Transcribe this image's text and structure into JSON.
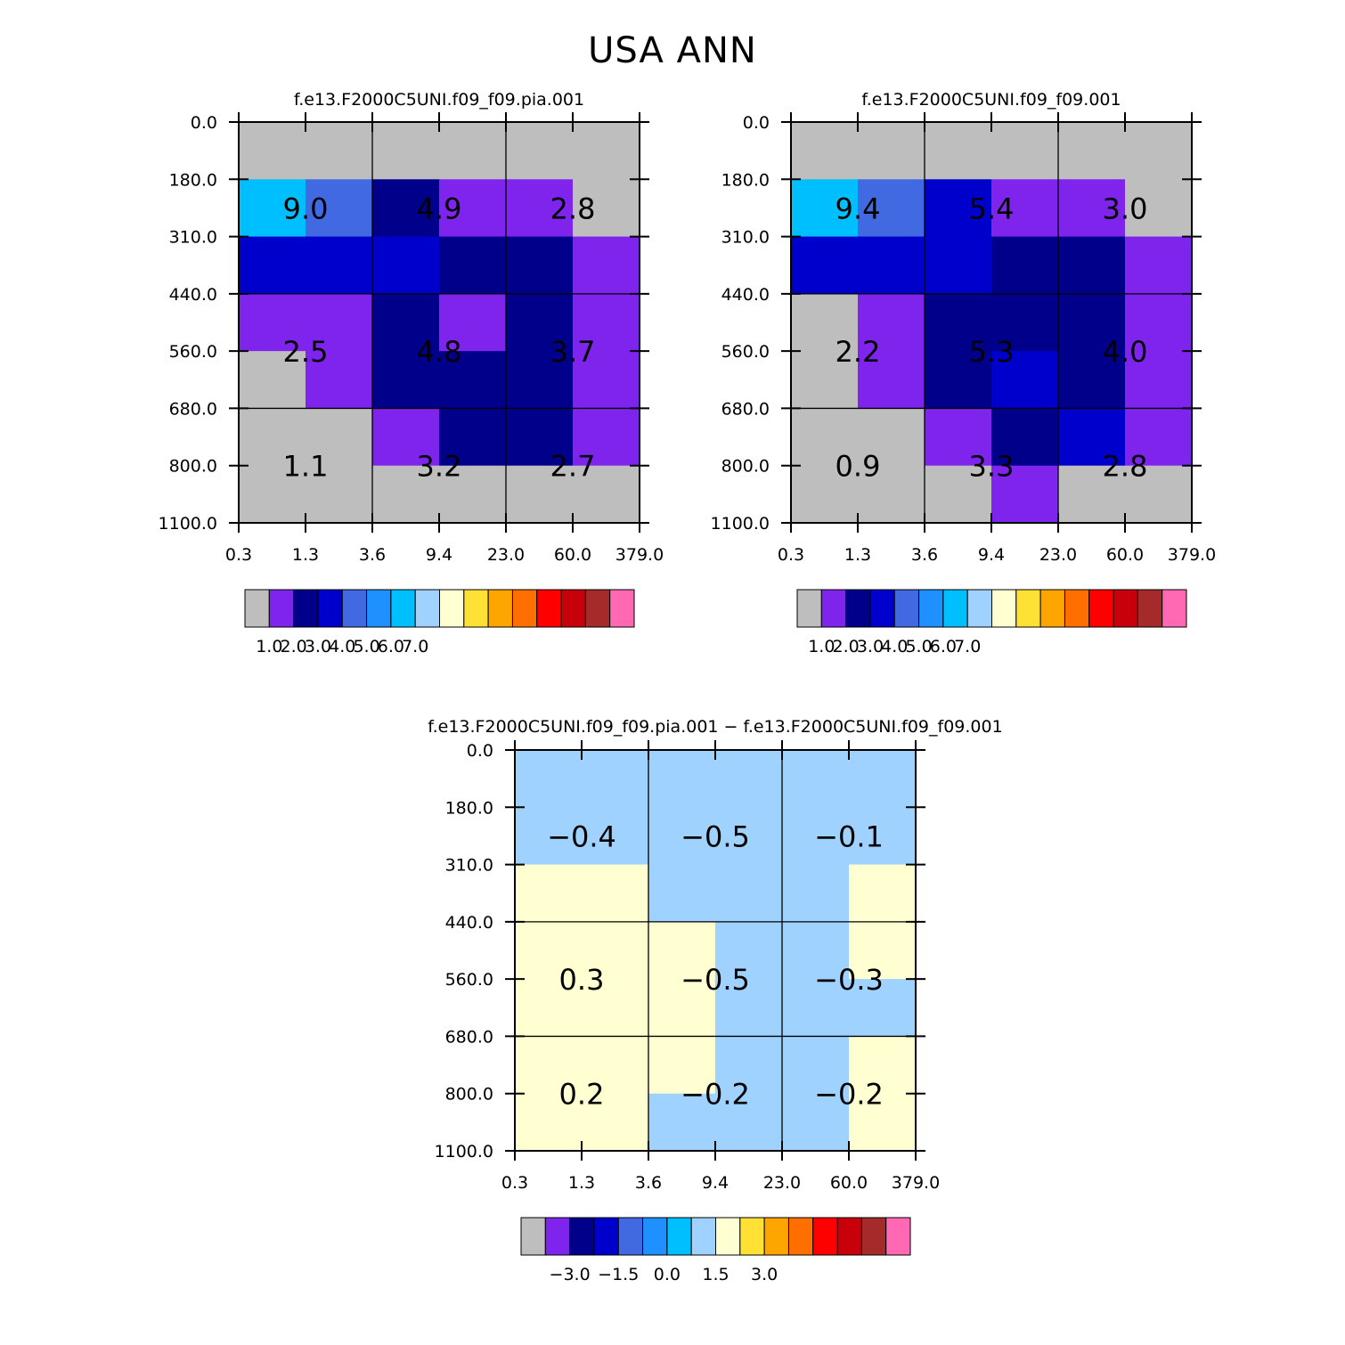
{
  "figure": {
    "title": "USA ANN"
  },
  "chart_data": [
    {
      "type": "heatmap",
      "title": "f.e13.F2000C5UNI.f09_f09.pia.001",
      "x_ticks": [
        "0.3",
        "1.3",
        "3.6",
        "9.4",
        "23.0",
        "60.0",
        "379.0"
      ],
      "y_ticks": [
        "0.0",
        "180.0",
        "310.0",
        "440.0",
        "560.0",
        "680.0",
        "800.0",
        "1100.0"
      ],
      "cell_colors": [
        [
          "#bebebe",
          "#bebebe",
          "#bebebe",
          "#bebebe",
          "#bebebe",
          "#bebebe"
        ],
        [
          "#00bfff",
          "#4169e1",
          "#00008b",
          "#7f24ed",
          "#7f24ed",
          "#bebebe"
        ],
        [
          "#0000cd",
          "#0000cd",
          "#0000cd",
          "#00008b",
          "#00008b",
          "#7f24ed"
        ],
        [
          "#7f24ed",
          "#7f24ed",
          "#00008b",
          "#7f24ed",
          "#00008b",
          "#7f24ed"
        ],
        [
          "#bebebe",
          "#7f24ed",
          "#00008b",
          "#00008b",
          "#00008b",
          "#7f24ed"
        ],
        [
          "#bebebe",
          "#bebebe",
          "#7f24ed",
          "#00008b",
          "#00008b",
          "#7f24ed"
        ],
        [
          "#bebebe",
          "#bebebe",
          "#bebebe",
          "#bebebe",
          "#bebebe",
          "#bebebe"
        ]
      ],
      "box_values": [
        [
          "9.0",
          "4.9",
          "2.8"
        ],
        [
          "2.5",
          "4.8",
          "3.7"
        ],
        [
          "1.1",
          "3.2",
          "2.7"
        ]
      ],
      "colorbar": {
        "colors": [
          "#bebebe",
          "#7f24ed",
          "#00008b",
          "#0000cd",
          "#4169e1",
          "#1e90ff",
          "#00bfff",
          "#a0d2ff",
          "#ffffd1",
          "#ffe135",
          "#ffa500",
          "#ff6f00",
          "#ff0000",
          "#c8000a",
          "#a52a2a",
          "#ff69b4"
        ],
        "labels": [
          "1.0",
          "2.0",
          "3.0",
          "4.0",
          "5.0",
          "6.0",
          "7.0"
        ]
      }
    },
    {
      "type": "heatmap",
      "title": "f.e13.F2000C5UNI.f09_f09.001",
      "x_ticks": [
        "0.3",
        "1.3",
        "3.6",
        "9.4",
        "23.0",
        "60.0",
        "379.0"
      ],
      "y_ticks": [
        "0.0",
        "180.0",
        "310.0",
        "440.0",
        "560.0",
        "680.0",
        "800.0",
        "1100.0"
      ],
      "cell_colors": [
        [
          "#bebebe",
          "#bebebe",
          "#bebebe",
          "#bebebe",
          "#bebebe",
          "#bebebe"
        ],
        [
          "#00bfff",
          "#4169e1",
          "#0000cd",
          "#7f24ed",
          "#7f24ed",
          "#bebebe"
        ],
        [
          "#0000cd",
          "#0000cd",
          "#0000cd",
          "#00008b",
          "#00008b",
          "#7f24ed"
        ],
        [
          "#bebebe",
          "#7f24ed",
          "#00008b",
          "#00008b",
          "#00008b",
          "#7f24ed"
        ],
        [
          "#bebebe",
          "#7f24ed",
          "#00008b",
          "#0000cd",
          "#00008b",
          "#7f24ed"
        ],
        [
          "#bebebe",
          "#bebebe",
          "#7f24ed",
          "#00008b",
          "#0000cd",
          "#7f24ed"
        ],
        [
          "#bebebe",
          "#bebebe",
          "#bebebe",
          "#7f24ed",
          "#bebebe",
          "#bebebe"
        ]
      ],
      "box_values": [
        [
          "9.4",
          "5.4",
          "3.0"
        ],
        [
          "2.2",
          "5.3",
          "4.0"
        ],
        [
          "0.9",
          "3.3",
          "2.8"
        ]
      ],
      "colorbar": {
        "colors": [
          "#bebebe",
          "#7f24ed",
          "#00008b",
          "#0000cd",
          "#4169e1",
          "#1e90ff",
          "#00bfff",
          "#a0d2ff",
          "#ffffd1",
          "#ffe135",
          "#ffa500",
          "#ff6f00",
          "#ff0000",
          "#c8000a",
          "#a52a2a",
          "#ff69b4"
        ],
        "labels": [
          "1.0",
          "2.0",
          "3.0",
          "4.0",
          "5.0",
          "6.0",
          "7.0"
        ]
      }
    },
    {
      "type": "heatmap",
      "title": "f.e13.F2000C5UNI.f09_f09.pia.001 − f.e13.F2000C5UNI.f09_f09.001",
      "x_ticks": [
        "0.3",
        "1.3",
        "3.6",
        "9.4",
        "23.0",
        "60.0",
        "379.0"
      ],
      "y_ticks": [
        "0.0",
        "180.0",
        "310.0",
        "440.0",
        "560.0",
        "680.0",
        "800.0",
        "1100.0"
      ],
      "cell_colors": [
        [
          "#a0d2ff",
          "#a0d2ff",
          "#a0d2ff",
          "#a0d2ff",
          "#a0d2ff",
          "#a0d2ff"
        ],
        [
          "#a0d2ff",
          "#a0d2ff",
          "#a0d2ff",
          "#a0d2ff",
          "#a0d2ff",
          "#a0d2ff"
        ],
        [
          "#ffffd1",
          "#ffffd1",
          "#a0d2ff",
          "#a0d2ff",
          "#a0d2ff",
          "#ffffd1"
        ],
        [
          "#ffffd1",
          "#ffffd1",
          "#ffffd1",
          "#a0d2ff",
          "#a0d2ff",
          "#ffffd1"
        ],
        [
          "#ffffd1",
          "#ffffd1",
          "#ffffd1",
          "#a0d2ff",
          "#a0d2ff",
          "#a0d2ff"
        ],
        [
          "#ffffd1",
          "#ffffd1",
          "#ffffd1",
          "#a0d2ff",
          "#a0d2ff",
          "#ffffd1"
        ],
        [
          "#ffffd1",
          "#ffffd1",
          "#a0d2ff",
          "#a0d2ff",
          "#a0d2ff",
          "#ffffd1"
        ]
      ],
      "box_values": [
        [
          "−0.4",
          "−0.5",
          "−0.1"
        ],
        [
          "0.3",
          "−0.5",
          "−0.3"
        ],
        [
          "0.2",
          "−0.2",
          "−0.2"
        ]
      ],
      "colorbar": {
        "colors": [
          "#bebebe",
          "#7f24ed",
          "#00008b",
          "#0000cd",
          "#4169e1",
          "#1e90ff",
          "#00bfff",
          "#a0d2ff",
          "#ffffd1",
          "#ffe135",
          "#ffa500",
          "#ff6f00",
          "#ff0000",
          "#c8000a",
          "#a52a2a",
          "#ff69b4"
        ],
        "labels": [
          "−3.0",
          "−1.5",
          "0.0",
          "1.5",
          "3.0"
        ]
      }
    }
  ]
}
